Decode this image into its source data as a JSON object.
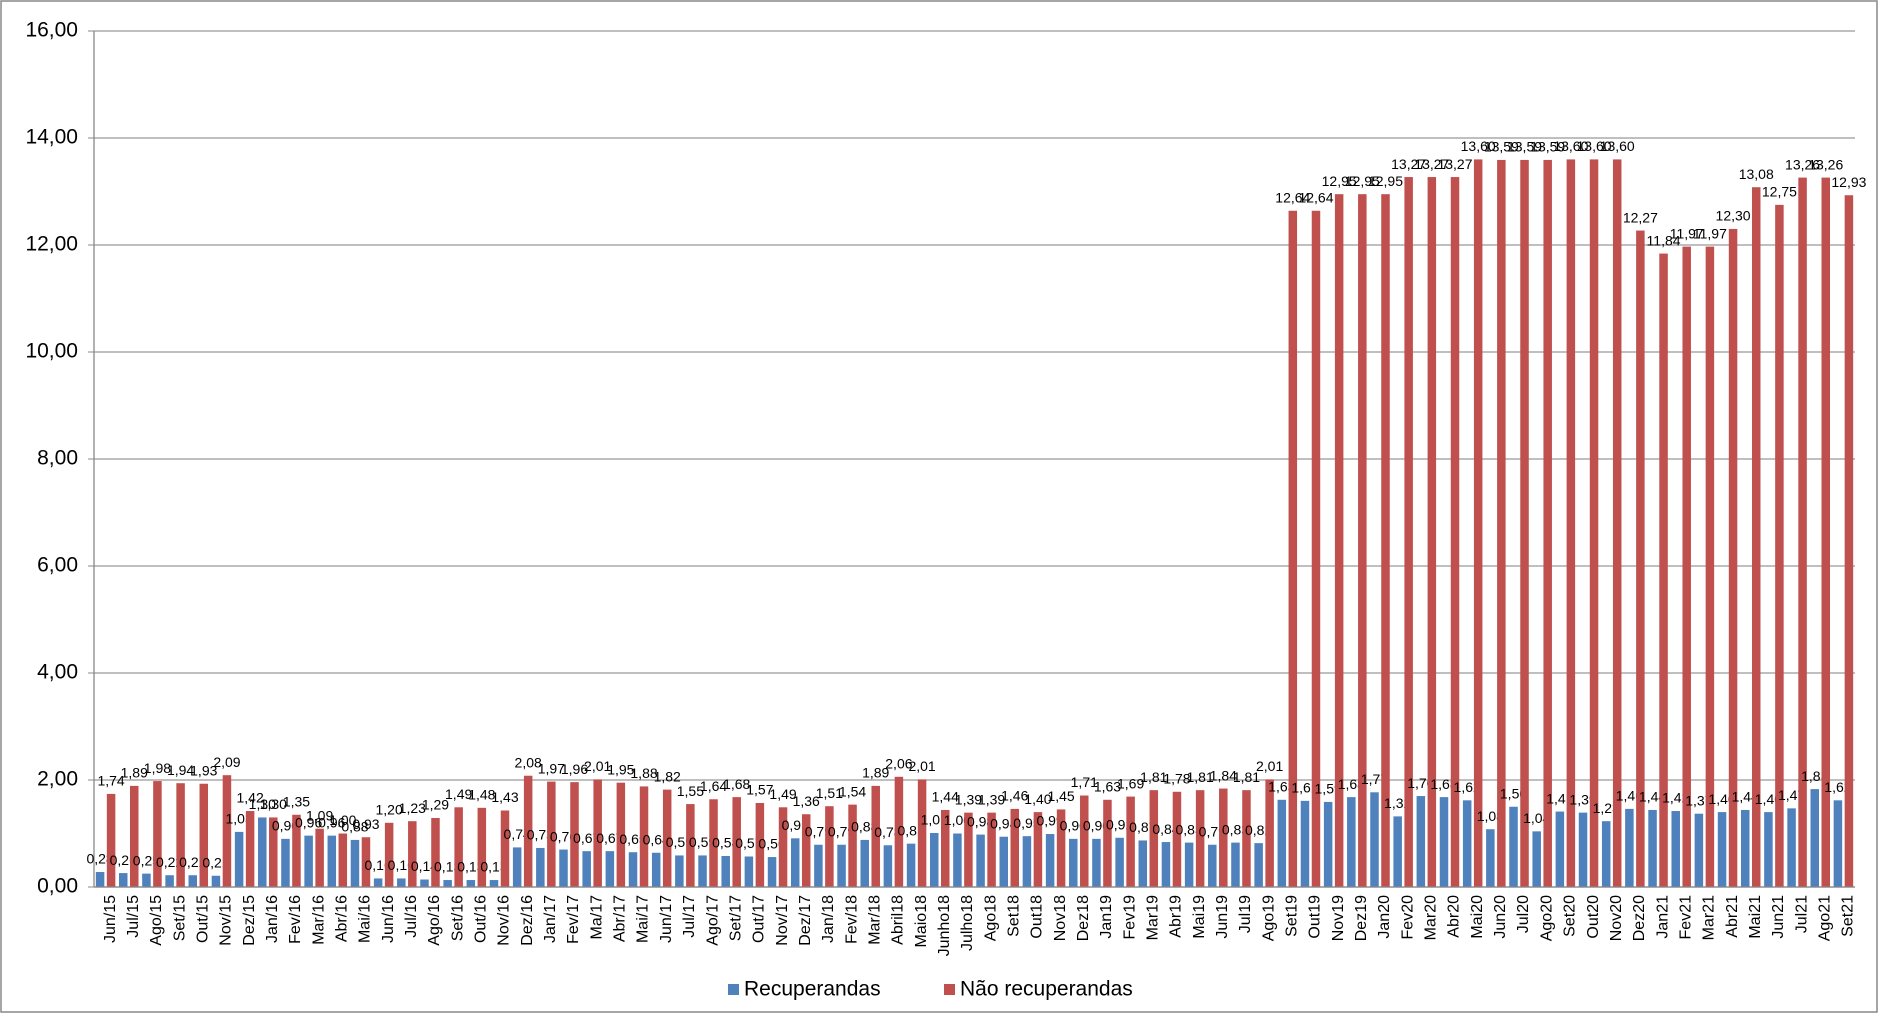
{
  "chart_data": {
    "type": "bar",
    "categories": [
      "Jun/15",
      "Jul/15",
      "Ago/15",
      "Set/15",
      "Out/15",
      "Nov/15",
      "Dez/15",
      "Jan/16",
      "Fev/16",
      "Mar/16",
      "Abr/16",
      "Mai/16",
      "Jun/16",
      "Jul/16",
      "Ago/16",
      "Set/16",
      "Out/16",
      "Nov/16",
      "Dez/16",
      "Jan/17",
      "Fev/17",
      "Ma/17",
      "Abr/17",
      "Mai/17",
      "Jun/17",
      "Jul/17",
      "Ago/17",
      "Set/17",
      "Out/17",
      "Nov/17",
      "Dez/17",
      "Jan/18",
      "Fev/18",
      "Mar/18",
      "Abril18",
      "Maio18",
      "Junho18",
      "Julho18",
      "Ago18",
      "Set18",
      "Out18",
      "Nov18",
      "Dez18",
      "Jan19",
      "Fev19",
      "Mar19",
      "Abr19",
      "Mai19",
      "Jun19",
      "Jul19",
      "Ago19",
      "Set19",
      "Out19",
      "Nov19",
      "Dez19",
      "Jan20",
      "Fev20",
      "Mar20",
      "Abr20",
      "Mai20",
      "Jun20",
      "Jul20",
      "Ago20",
      "Set20",
      "Out20",
      "Nov20",
      "Dez20",
      "Jan21",
      "Fev21",
      "Mar21",
      "Abr21",
      "Mai21",
      "Jun21",
      "Jul21",
      "Ago21",
      "Set21"
    ],
    "series": [
      {
        "name": "Recuperandas",
        "color": "#4f81bd",
        "values": [
          0.28,
          0.26,
          0.25,
          0.22,
          0.22,
          0.21,
          1.03,
          1.3,
          0.9,
          0.96,
          0.96,
          0.88,
          0.16,
          0.16,
          0.14,
          0.13,
          0.13,
          0.13,
          0.74,
          0.73,
          0.7,
          0.67,
          0.67,
          0.65,
          0.64,
          0.59,
          0.59,
          0.58,
          0.57,
          0.56,
          0.91,
          0.79,
          0.79,
          0.88,
          0.78,
          0.81,
          1.01,
          1.0,
          0.98,
          0.94,
          0.95,
          0.99,
          0.9,
          0.9,
          0.92,
          0.87,
          0.84,
          0.83,
          0.79,
          0.83,
          0.82,
          1.63,
          1.61,
          1.59,
          1.68,
          1.77,
          1.32,
          1.7,
          1.68,
          1.62,
          1.08,
          1.5,
          1.04,
          1.41,
          1.39,
          1.23,
          1.46,
          1.44,
          1.42,
          1.37,
          1.4,
          1.44,
          1.4,
          1.47,
          1.83,
          1.62
        ],
        "value_labels": [
          "0,28",
          "0,26",
          "0,25",
          "0,22",
          "0,22",
          "0,21",
          "1,03",
          "1,30",
          "0,90",
          "0,96",
          "0,96",
          "0,88",
          "0,16",
          "0,16",
          "0,14",
          "0,13",
          "0,13",
          "0,13",
          "0,74",
          "0,73",
          "0,70",
          "0,67",
          "0,67",
          "0,65",
          "0,64",
          "0,59",
          "0,59",
          "0,58",
          "0,57",
          "0,56",
          "0,91",
          "0,79",
          "0,79",
          "0,88",
          "0,78",
          "0,81",
          "1,01",
          "1,00",
          "0,98",
          "0,94",
          "0,95",
          "0,99",
          "0,90",
          "0,90",
          "0,92",
          "0,87",
          "0,84",
          "0,83",
          "0,79",
          "0,83",
          "0,82",
          "1,63",
          "1,61",
          "1,59",
          "1,68",
          "1,77",
          "1,32",
          "1,70",
          "1,68",
          "1,62",
          "1,08",
          "1,50",
          "1,04",
          "1,41",
          "1,39",
          "1,23",
          "1,46",
          "1,44",
          "1,42",
          "1,37",
          "1,40",
          "1,44",
          "1,40",
          "1,47",
          "1,83",
          "1,62"
        ]
      },
      {
        "name": "Não recuperandas",
        "color": "#c0504d",
        "values": [
          1.74,
          1.89,
          1.98,
          1.94,
          1.93,
          2.09,
          1.42,
          1.3,
          1.35,
          1.09,
          1.0,
          0.93,
          1.2,
          1.23,
          1.29,
          1.49,
          1.48,
          1.43,
          2.08,
          1.97,
          1.96,
          2.01,
          1.95,
          1.88,
          1.82,
          1.55,
          1.64,
          1.68,
          1.57,
          1.49,
          1.36,
          1.51,
          1.54,
          1.89,
          2.06,
          2.01,
          1.44,
          1.39,
          1.39,
          1.46,
          1.4,
          1.45,
          1.71,
          1.63,
          1.69,
          1.81,
          1.78,
          1.81,
          1.84,
          1.81,
          2.01,
          12.64,
          12.64,
          12.95,
          12.95,
          12.95,
          13.27,
          13.27,
          13.27,
          13.6,
          13.59,
          13.59,
          13.59,
          13.6,
          13.6,
          13.6,
          12.27,
          11.84,
          11.97,
          11.97,
          12.3,
          13.08,
          12.75,
          13.26,
          13.26,
          12.93
        ],
        "value_labels": [
          "1,74",
          "1,89",
          "1,98",
          "1,94",
          "1,93",
          "2,09",
          "1,42",
          "1,30",
          "1,35",
          "1,09",
          "1,00",
          "0,93",
          "1,20",
          "1,23",
          "1,29",
          "1,49",
          "1,48",
          "1,43",
          "2,08",
          "1,97",
          "1,96",
          "2,01",
          "1,95",
          "1,88",
          "1,82",
          "1,55",
          "1,64",
          "1,68",
          "1,57",
          "1,49",
          "1,36",
          "1,51",
          "1,54",
          "1,89",
          "2,06",
          "2,01",
          "1,44",
          "1,39",
          "1,39",
          "1,46",
          "1,40",
          "1,45",
          "1,71",
          "1,63",
          "1,69",
          "1,81",
          "1,78",
          "1,81",
          "1,84",
          "1,81",
          "2,01",
          "12,64",
          "12,64",
          "12,95",
          "12,95",
          "12,95",
          "13,27",
          "13,27",
          "13,27",
          "13,60",
          "13,59",
          "13,59",
          "13,59",
          "13,60",
          "13,60",
          "13,60",
          "12,27",
          "11,84",
          "11,97",
          "11,97",
          "12,30",
          "13,08",
          "12,75",
          "13,26",
          "13,26",
          "12,93"
        ]
      }
    ],
    "ylim": [
      0,
      16
    ],
    "yticks": [
      {
        "value": 0,
        "label": "0,00"
      },
      {
        "value": 2,
        "label": "2,00"
      },
      {
        "value": 4,
        "label": "4,00"
      },
      {
        "value": 6,
        "label": "6,00"
      },
      {
        "value": 8,
        "label": "8,00"
      },
      {
        "value": 10,
        "label": "10,00"
      },
      {
        "value": 12,
        "label": "12,00"
      },
      {
        "value": 14,
        "label": "14,00"
      },
      {
        "value": 16,
        "label": "16,00"
      }
    ],
    "grid": true,
    "legend": "bottom"
  }
}
